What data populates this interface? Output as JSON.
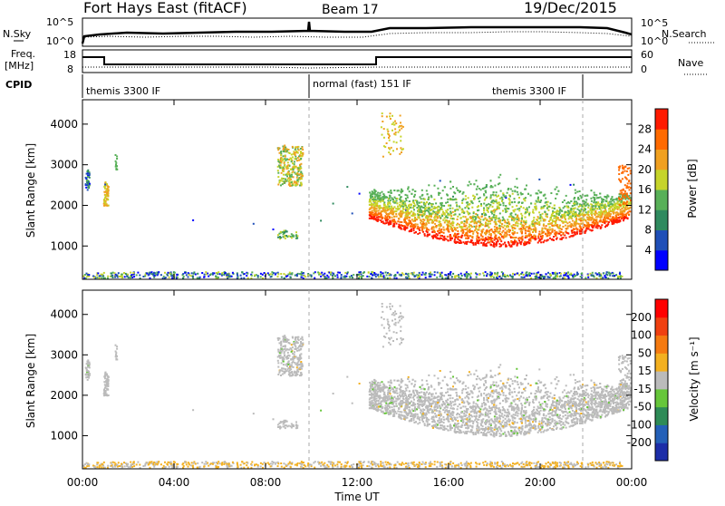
{
  "header": {
    "title": "Fort Hays East (fitACF)",
    "beam": "Beam 17",
    "date": "19/Dec/2015"
  },
  "noise_panel": {
    "left_label": "N.Sky",
    "right_label": "N.Search",
    "left_ticks": [
      "10^5",
      "10^0"
    ],
    "right_ticks": [
      "10^5",
      "10^0"
    ]
  },
  "freq_panel": {
    "left_label_line1": "Freq.",
    "left_label_line2": "[MHz]",
    "right_label": "Nave",
    "left_ticks": [
      "18",
      "8"
    ],
    "right_ticks": [
      "60",
      "0"
    ]
  },
  "cpid_panel": {
    "label": "CPID",
    "segments": [
      "themis 3300 IF",
      "normal (fast) 151 IF",
      "themis 3300 IF"
    ]
  },
  "chart_data": [
    {
      "type": "heatmap",
      "name": "power-panel",
      "ylabel": "Slant Range [km]",
      "yticks": [
        1000,
        2000,
        3000,
        4000
      ],
      "ylim": [
        180,
        4600
      ],
      "xlim": [
        0,
        24
      ],
      "colorbar_label": "Power [dB]",
      "colorbar_ticks": [
        4,
        8,
        12,
        16,
        20,
        24,
        28
      ],
      "colorbar_colors": [
        "#0000ff",
        "#1f4fb8",
        "#2f8a5f",
        "#58b058",
        "#c6d42a",
        "#f0a020",
        "#ff6a00",
        "#ff1a00"
      ]
    },
    {
      "type": "heatmap",
      "name": "velocity-panel",
      "ylabel": "Slant Range [km]",
      "yticks": [
        1000,
        2000,
        3000,
        4000
      ],
      "ylim": [
        180,
        4600
      ],
      "xlim": [
        0,
        24
      ],
      "xlabel": "Time UT",
      "xticks": [
        "00:00",
        "04:00",
        "08:00",
        "12:00",
        "16:00",
        "20:00",
        "00:00"
      ],
      "colorbar_label": "Velocity [m s⁻¹]",
      "colorbar_ticks": [
        "200",
        "100",
        "50",
        "15",
        "-15",
        "-50",
        "-100",
        "-200"
      ],
      "colorbar_colors": [
        "#1c2da8",
        "#2460b8",
        "#2e8b57",
        "#66c63a",
        "#bbbbbb",
        "#f3b020",
        "#f57a10",
        "#f04010",
        "#ff0000"
      ]
    }
  ]
}
